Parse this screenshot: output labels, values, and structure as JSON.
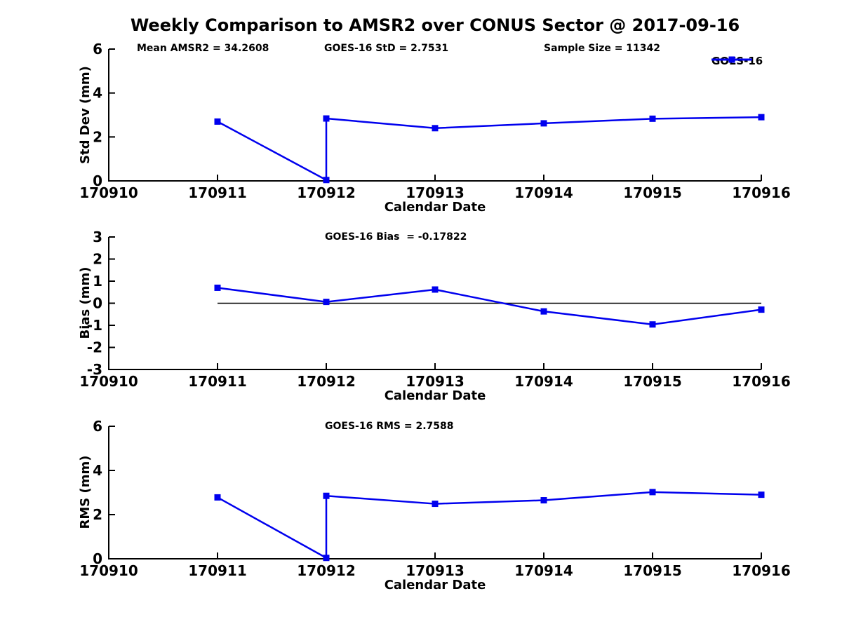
{
  "title": "Weekly Comparison to AMSR2 over CONUS Sector @ 2017-09-16",
  "legend": {
    "label": "GOES-16"
  },
  "colors": {
    "line": "#0000EE",
    "axis": "#000000",
    "text": "#000000",
    "background": "#FFFFFF"
  },
  "x_axis": {
    "label": "Calendar Date",
    "range": [
      170910,
      170916
    ],
    "ticks": [
      "170910",
      "170911",
      "170912",
      "170913",
      "170914",
      "170915",
      "170916"
    ]
  },
  "chart_data": [
    {
      "type": "line",
      "name": "std-dev-panel",
      "annotations": [
        "Mean AMSR2 = 34.2608",
        "GOES-16 StD = 2.7531",
        "Sample Size = 11342"
      ],
      "ylabel": "Std Dev (mm)",
      "xlabel": "Calendar Date",
      "ylim": [
        0,
        6
      ],
      "yticks": [
        0,
        2,
        4,
        6
      ],
      "zero_line": false,
      "legend_position": "upper right outside",
      "series": [
        {
          "name": "GOES-16",
          "x": [
            170911,
            170912,
            170912,
            170913,
            170914,
            170915,
            170916
          ],
          "y": [
            2.7,
            0.04,
            2.84,
            2.4,
            2.62,
            2.83,
            2.9
          ]
        }
      ]
    },
    {
      "type": "line",
      "name": "bias-panel",
      "annotations": [
        "GOES-16 Bias  = -0.17822"
      ],
      "ylabel": "Bias (mm)",
      "xlabel": "Calendar Date",
      "ylim": [
        -3,
        3
      ],
      "yticks": [
        3,
        2,
        1,
        0,
        -1,
        -2,
        -3
      ],
      "zero_line": true,
      "series": [
        {
          "name": "GOES-16",
          "x": [
            170911,
            170912,
            170913,
            170914,
            170915,
            170916
          ],
          "y": [
            0.7,
            0.06,
            0.62,
            -0.37,
            -0.96,
            -0.29
          ]
        }
      ]
    },
    {
      "type": "line",
      "name": "rms-panel",
      "annotations": [
        "GOES-16 RMS = 2.7588"
      ],
      "ylabel": "RMS (mm)",
      "xlabel": "Calendar Date",
      "ylim": [
        0,
        6
      ],
      "yticks": [
        0,
        2,
        4,
        6
      ],
      "zero_line": false,
      "series": [
        {
          "name": "GOES-16",
          "x": [
            170911,
            170912,
            170912,
            170913,
            170914,
            170915,
            170916
          ],
          "y": [
            2.78,
            0.04,
            2.85,
            2.49,
            2.65,
            3.02,
            2.9
          ]
        }
      ]
    }
  ]
}
